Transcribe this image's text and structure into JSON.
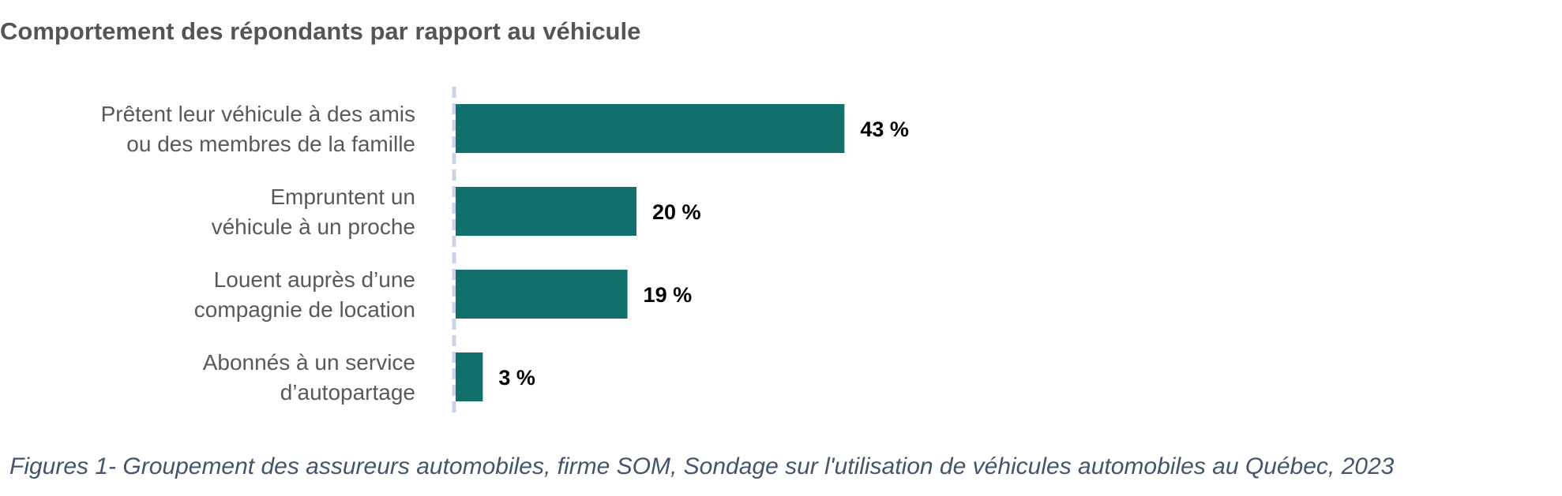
{
  "chart_data": {
    "type": "bar",
    "orientation": "horizontal",
    "title": "Comportement des répondants par rapport au véhicule",
    "categories": [
      [
        "Prêtent leur véhicule à des amis",
        "ou des membres de la famille"
      ],
      [
        "Empruntent un",
        "véhicule à un proche"
      ],
      [
        "Louent auprès d’une",
        "compagnie de location"
      ],
      [
        "Abonnés à un service",
        "d’autopartage"
      ]
    ],
    "values": [
      43,
      20,
      19,
      3
    ],
    "value_labels": [
      "43 %",
      "20 %",
      "19 %",
      "3 %"
    ],
    "xlim": [
      0,
      100
    ],
    "grid": false,
    "bar_color": "#11706C",
    "axis_color": "#C9D3E8"
  },
  "caption": "Figures 1-  Groupement des assureurs automobiles, firme SOM, Sondage sur l'utilisation de véhicules automobiles au Québec, 2023"
}
